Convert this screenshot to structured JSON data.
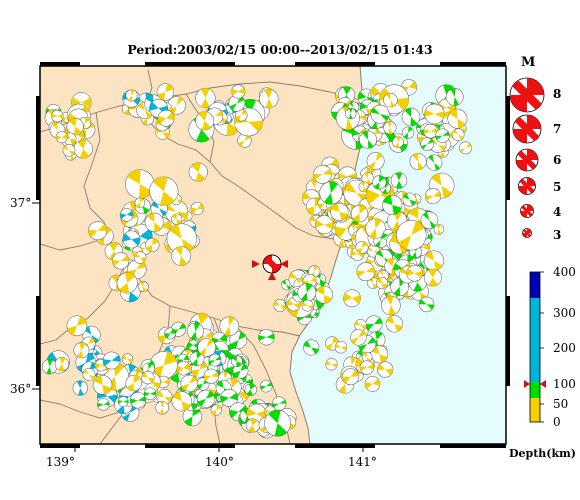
{
  "title": "Period:2003/02/15 00:00--2013/02/15 01:43",
  "map": {
    "lon_ticks": [
      "139°",
      "140°",
      "141°"
    ],
    "lat_ticks": [
      "37°",
      "36°"
    ],
    "land_color": "#fce3c2",
    "sea_color": "#e5fcfc",
    "boundary_color": "#8c7d6a"
  },
  "magnitude_scale": {
    "title": "M",
    "values": [
      "8",
      "7",
      "6",
      "5",
      "4",
      "3"
    ],
    "color": "#ee1111"
  },
  "depth_scale": {
    "ticks": [
      "400",
      "300",
      "200",
      "100",
      "50",
      "0"
    ],
    "unit": "Depth(km)",
    "bands": [
      {
        "range": "0-50",
        "color": "#f4d000"
      },
      {
        "range": "50-100",
        "color": "#00dd00"
      },
      {
        "range": "100-300",
        "color": "#00b4d8"
      },
      {
        "range": "300-400",
        "color": "#0000b4"
      }
    ],
    "highlight_depth_km": 100
  },
  "highlight_event": {
    "color": "#ee1111",
    "marker_color": "#cc1111"
  }
}
